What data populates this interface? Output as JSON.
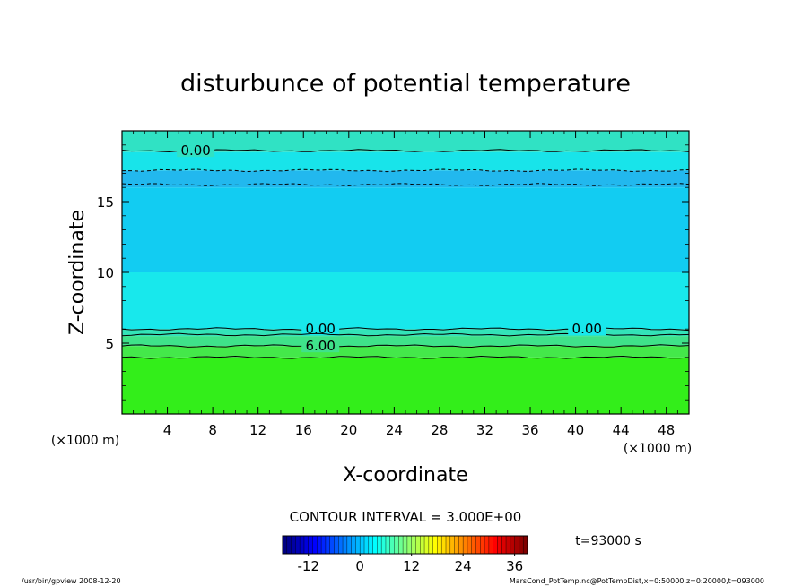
{
  "chart_data": {
    "type": "heatmap",
    "title": "disturbunce of potential temperature",
    "xlabel": "X-coordinate",
    "ylabel": "Z-coordinate",
    "x_unit_left": "(×1000 m)",
    "x_unit_right": "(×1000 m)",
    "xlim": [
      0,
      50
    ],
    "ylim": [
      0,
      20
    ],
    "x_ticks": [
      4,
      8,
      12,
      16,
      20,
      24,
      28,
      32,
      36,
      40,
      44,
      48
    ],
    "y_ticks": [
      5,
      10,
      15
    ],
    "x_tick_labels": [
      "4",
      "8",
      "12",
      "16",
      "20",
      "24",
      "28",
      "32",
      "36",
      "40",
      "44",
      "48"
    ],
    "y_tick_labels": [
      "5",
      "10",
      "15"
    ],
    "bands": [
      {
        "z_from": 0,
        "z_to": 4.0,
        "value": 9,
        "color": "#33ee1a"
      },
      {
        "z_from": 4.0,
        "z_to": 4.8,
        "value": 7,
        "color": "#44e84a"
      },
      {
        "z_from": 4.8,
        "z_to": 5.5,
        "value": 4,
        "color": "#3fe28a"
      },
      {
        "z_from": 5.5,
        "z_to": 6.0,
        "value": 2,
        "color": "#33e3b8"
      },
      {
        "z_from": 6.0,
        "z_to": 10.0,
        "value": -1,
        "color": "#18e8ec"
      },
      {
        "z_from": 10.0,
        "z_to": 16.0,
        "value": -3,
        "color": "#12ccf2"
      },
      {
        "z_from": 16.0,
        "z_to": 17.2,
        "value": -5,
        "color": "#22b8ee"
      },
      {
        "z_from": 17.2,
        "z_to": 18.5,
        "value": -1,
        "color": "#18e4ea"
      },
      {
        "z_from": 18.5,
        "z_to": 20,
        "value": 1,
        "color": "#30e2c4"
      }
    ],
    "contours": [
      {
        "level": 0.0,
        "label": "0.00",
        "style": "solid",
        "z": 6.0
      },
      {
        "level": 3.0,
        "label": "",
        "style": "solid",
        "z": 5.6
      },
      {
        "level": 6.0,
        "label": "6.00",
        "style": "solid",
        "z": 4.8
      },
      {
        "level": 9.0,
        "label": "",
        "style": "solid",
        "z": 4.0
      },
      {
        "level": -3.0,
        "label": "",
        "style": "dashed",
        "z": 17.2
      },
      {
        "level": -6.0,
        "label": "",
        "style": "dashed",
        "z": 16.2
      },
      {
        "level": 0.0,
        "label": "0.00",
        "style": "solid",
        "z": 18.6
      }
    ],
    "contour_interval": "CONTOUR INTERVAL = 3.000E+00",
    "colorbar": {
      "min": -18,
      "max": 39,
      "ticks": [
        -12,
        0,
        12,
        24,
        36
      ],
      "tick_labels": [
        "-12",
        "0",
        "12",
        "24",
        "36"
      ]
    },
    "time_label": "t=93000 s",
    "footer_left": "/usr/bin/gpview 2008-12-20",
    "footer_right": "MarsCond_PotTemp.nc@PotTempDist,x=0:50000,z=0:20000,t=093000"
  }
}
